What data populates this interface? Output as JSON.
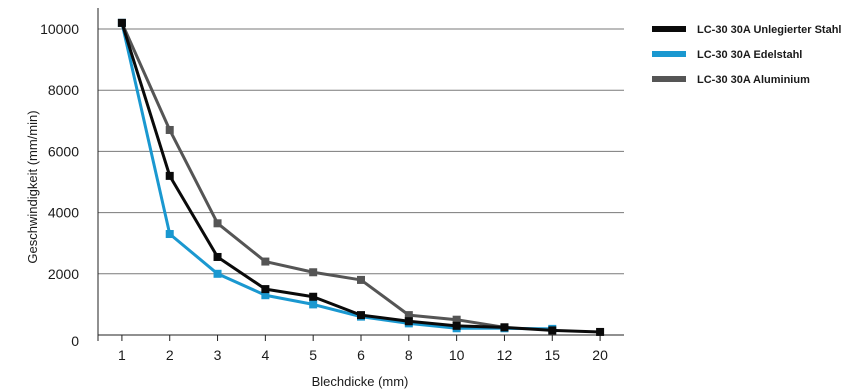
{
  "chart_data": {
    "type": "line",
    "title": "",
    "xlabel": "Blechdicke (mm)",
    "ylabel": "Geschwindigkeit (mm/min)",
    "categories": [
      "1",
      "2",
      "3",
      "4",
      "5",
      "6",
      "8",
      "10",
      "12",
      "15",
      "20"
    ],
    "ylim": [
      0,
      10000
    ],
    "yticks": [
      0,
      2000,
      4000,
      6000,
      8000,
      10000
    ],
    "grid": "horizontal",
    "legend_position": "right",
    "series": [
      {
        "name": "LC-30 30A Unlegierter Stahl",
        "color": "#0a0a0a",
        "values": [
          10200,
          5200,
          2550,
          1500,
          1250,
          650,
          450,
          300,
          250,
          150,
          100
        ]
      },
      {
        "name": "LC-30 30A Edelstahl",
        "color": "#1a98d0",
        "values": [
          10200,
          3300,
          2000,
          1300,
          1000,
          600,
          380,
          220,
          220,
          200,
          null
        ]
      },
      {
        "name": "LC-30 30A Aluminium",
        "color": "#555555",
        "values": [
          10200,
          6700,
          3650,
          2400,
          2050,
          1800,
          650,
          500,
          250,
          null,
          null
        ]
      }
    ]
  }
}
